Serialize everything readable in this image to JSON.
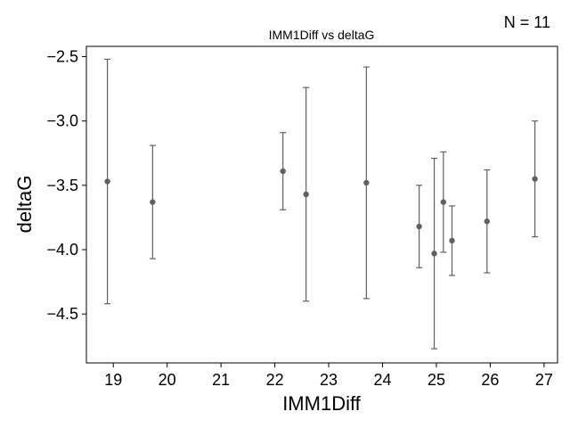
{
  "chart_data": {
    "type": "scatter",
    "title": "IMM1Diff vs deltaG",
    "annotation": "N = 11",
    "xlabel": "IMM1Diff",
    "ylabel": "deltaG",
    "xlim": [
      18.5,
      27.25
    ],
    "ylim": [
      -4.88,
      -2.42
    ],
    "xticks": [
      19,
      20,
      21,
      22,
      23,
      24,
      25,
      26,
      27
    ],
    "yticks": [
      -2.5,
      -3.0,
      -3.5,
      -4.0,
      -4.5
    ],
    "xtick_labels": [
      "19",
      "20",
      "21",
      "22",
      "23",
      "24",
      "25",
      "26",
      "27"
    ],
    "ytick_labels": [
      "−2.5",
      "−3.0",
      "−3.5",
      "−4.0",
      "−4.5"
    ],
    "grid": false,
    "colors": {
      "marker": "#606060",
      "errorbar": "#606060",
      "axes": "#000000"
    },
    "points": [
      {
        "x": 18.89,
        "y": -3.47,
        "err": 0.95
      },
      {
        "x": 19.73,
        "y": -3.63,
        "err": 0.44
      },
      {
        "x": 22.15,
        "y": -3.39,
        "err": 0.3
      },
      {
        "x": 22.58,
        "y": -3.57,
        "err": 0.83
      },
      {
        "x": 23.7,
        "y": -3.48,
        "err": 0.9
      },
      {
        "x": 24.68,
        "y": -3.82,
        "err": 0.32
      },
      {
        "x": 24.96,
        "y": -4.03,
        "err": 0.74
      },
      {
        "x": 25.13,
        "y": -3.63,
        "err": 0.39
      },
      {
        "x": 25.29,
        "y": -3.93,
        "err": 0.27
      },
      {
        "x": 25.94,
        "y": -3.78,
        "err": 0.4
      },
      {
        "x": 26.83,
        "y": -3.45,
        "err": 0.45
      }
    ]
  }
}
